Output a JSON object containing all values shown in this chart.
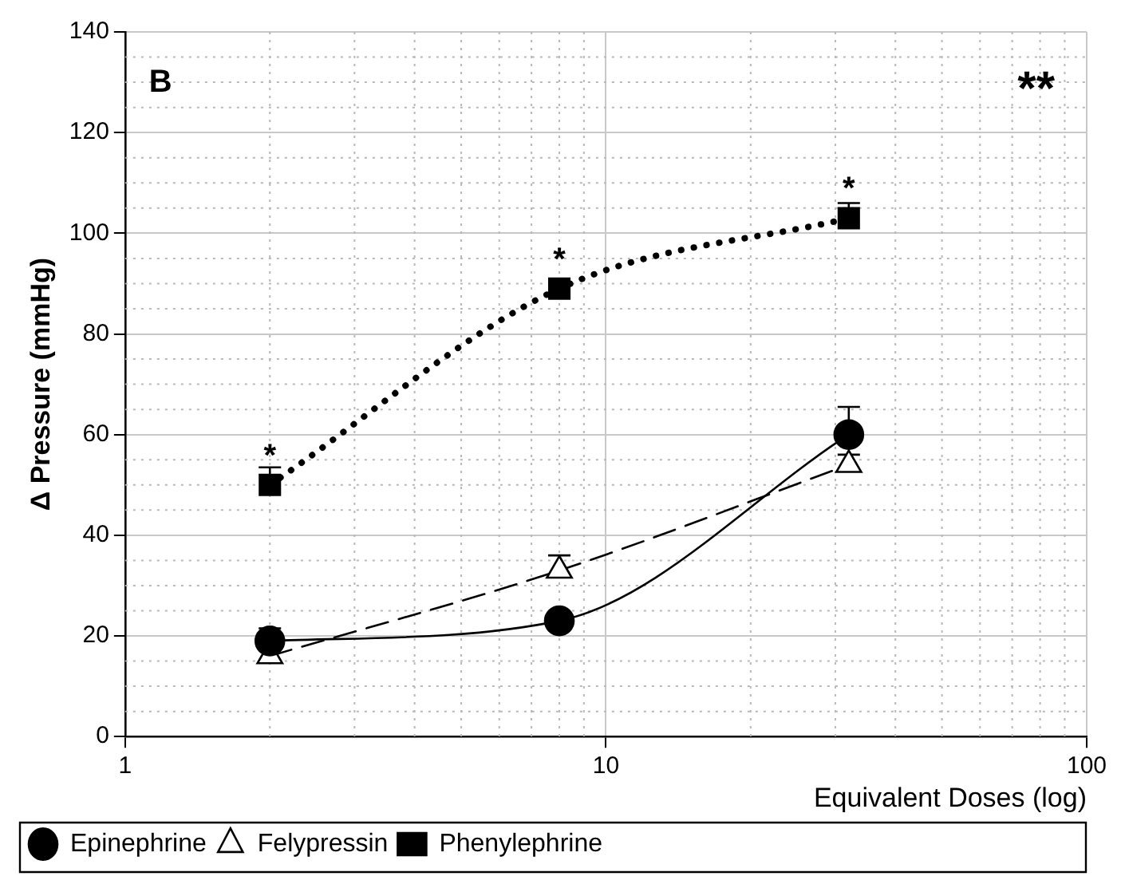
{
  "chart_data": {
    "type": "line",
    "xlabel": "Equivalent Doses (log)",
    "ylabel": "Δ Pressure (mmHg)",
    "x": [
      2,
      8,
      32
    ],
    "series": [
      {
        "name": "Epinephrine",
        "color": "#000000",
        "values": [
          19,
          23,
          60
        ],
        "errors": [
          [
            19,
            21.5
          ],
          null,
          [
            60,
            65.5
          ]
        ],
        "marker": "circle",
        "line_style": "solid"
      },
      {
        "name": "Felypressin",
        "color": "#000000",
        "values": [
          16,
          33,
          54
        ],
        "errors": [
          null,
          [
            33,
            36
          ],
          [
            54,
            56
          ]
        ],
        "marker": "triangle",
        "line_style": "dashed"
      },
      {
        "name": "Phenylephrine",
        "color": "#000000",
        "values": [
          50,
          89,
          103
        ],
        "errors": [
          [
            50,
            53.5
          ],
          null,
          [
            103,
            106
          ]
        ],
        "marker": "square",
        "line_style": "dotted"
      }
    ],
    "log": "x",
    "xlim": [
      1,
      100
    ],
    "xticks": [
      1,
      10,
      100
    ],
    "ylim": [
      0,
      140
    ],
    "yticks": [
      0,
      20,
      40,
      60,
      80,
      100,
      120,
      140
    ],
    "grid": true,
    "legend": "bottom left",
    "annotations": [
      "B",
      "**",
      {
        "text": "*",
        "x": 2,
        "y": 50
      },
      {
        "text": "*",
        "x": 8,
        "y": 89
      },
      {
        "text": "*",
        "x": 32,
        "y": 103
      }
    ]
  }
}
